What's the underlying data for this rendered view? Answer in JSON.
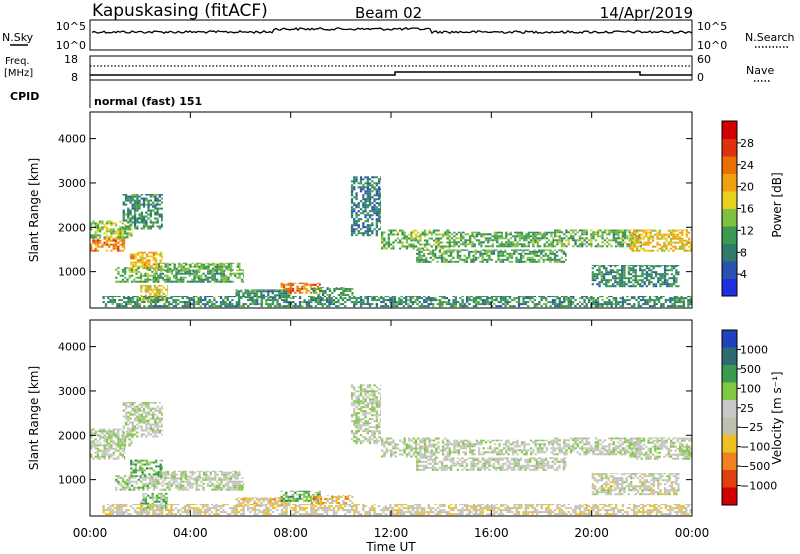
{
  "header": {
    "station": "Kapuskasing (fitACF)",
    "beam": "Beam 02",
    "date": "14/Apr/2019"
  },
  "meta_panels": {
    "nsky": {
      "label": "N.Sky",
      "ticks": [
        "10^5",
        "10^0"
      ]
    },
    "nsearch": {
      "label": "N.Search",
      "ticks": [
        "10^5",
        "10^0"
      ]
    },
    "freq": {
      "label_line1": "Freq.",
      "label_line2": "[MHz]",
      "ticks": [
        "18",
        "8"
      ]
    },
    "nave": {
      "label": "Nave",
      "ticks": [
        "60",
        "0"
      ]
    },
    "cpid": {
      "label": "CPID",
      "value": "normal (fast) 151"
    }
  },
  "colors": {
    "power_scale": [
      "#1f2fe0",
      "#2a50b0",
      "#2f7a6a",
      "#3a9a50",
      "#7fc040",
      "#e8d020",
      "#f0a010",
      "#e87000",
      "#e03010",
      "#d00000"
    ],
    "velocity_scale": [
      "#2040c0",
      "#2f6a70",
      "#3a9a50",
      "#80c840",
      "#c8c8c8",
      "#c0c0b0",
      "#f0c020",
      "#f08020",
      "#e04010",
      "#d00000"
    ]
  },
  "chart_data": [
    {
      "type": "heatmap",
      "title": "",
      "quantity": "Power",
      "xlabel": "",
      "ylabel": "Slant Range [km]",
      "xlim": [
        0,
        24
      ],
      "ylim": [
        180,
        4600
      ],
      "x_ticks": [
        "00:00",
        "04:00",
        "08:00",
        "12:00",
        "16:00",
        "20:00",
        "00:00"
      ],
      "y_ticks": [
        1000,
        2000,
        3000,
        4000
      ],
      "colorbar": {
        "label": "Power [dB]",
        "range": [
          0,
          32
        ],
        "ticks": [
          4,
          8,
          12,
          16,
          20,
          24,
          28
        ]
      },
      "regions": [
        {
          "t": [
            0.0,
            1.4
          ],
          "r": [
            1450,
            1750
          ],
          "level": 0.72
        },
        {
          "t": [
            0.0,
            1.7
          ],
          "r": [
            1750,
            2150
          ],
          "level": 0.45
        },
        {
          "t": [
            1.3,
            2.9
          ],
          "r": [
            1950,
            2750
          ],
          "level": 0.3
        },
        {
          "t": [
            1.6,
            2.9
          ],
          "r": [
            1050,
            1450
          ],
          "level": 0.62
        },
        {
          "t": [
            1.0,
            2.7
          ],
          "r": [
            750,
            1100
          ],
          "level": 0.4
        },
        {
          "t": [
            2.5,
            6.1
          ],
          "r": [
            750,
            1050
          ],
          "level": 0.35
        },
        {
          "t": [
            2.7,
            6.0
          ],
          "r": [
            1000,
            1200
          ],
          "level": 0.4
        },
        {
          "t": [
            2.0,
            3.1
          ],
          "r": [
            300,
            700
          ],
          "level": 0.55
        },
        {
          "t": [
            5.8,
            8.0
          ],
          "r": [
            400,
            600
          ],
          "level": 0.3
        },
        {
          "t": [
            7.6,
            9.2
          ],
          "r": [
            500,
            750
          ],
          "level": 0.75
        },
        {
          "t": [
            8.8,
            10.5
          ],
          "r": [
            450,
            650
          ],
          "level": 0.35
        },
        {
          "t": [
            0.5,
            24.0
          ],
          "r": [
            200,
            450
          ],
          "level": 0.3
        },
        {
          "t": [
            10.4,
            11.6
          ],
          "r": [
            1800,
            3150
          ],
          "level": 0.25
        },
        {
          "t": [
            11.6,
            14.3
          ],
          "r": [
            1500,
            1950
          ],
          "level": 0.42
        },
        {
          "t": [
            14.3,
            18.5
          ],
          "r": [
            1550,
            1900
          ],
          "level": 0.38
        },
        {
          "t": [
            13.0,
            19.0
          ],
          "r": [
            1200,
            1500
          ],
          "level": 0.35
        },
        {
          "t": [
            18.5,
            22.0
          ],
          "r": [
            1550,
            1950
          ],
          "level": 0.4
        },
        {
          "t": [
            21.5,
            24.0
          ],
          "r": [
            1450,
            1950
          ],
          "level": 0.58
        },
        {
          "t": [
            20.0,
            23.5
          ],
          "r": [
            650,
            1150
          ],
          "level": 0.3
        }
      ]
    },
    {
      "type": "heatmap",
      "title": "",
      "quantity": "Velocity",
      "xlabel": "Time UT",
      "ylabel": "Slant Range [km]",
      "xlim": [
        0,
        24
      ],
      "ylim": [
        180,
        4600
      ],
      "x_ticks": [
        "00:00",
        "04:00",
        "08:00",
        "12:00",
        "16:00",
        "20:00",
        "00:00"
      ],
      "y_ticks": [
        1000,
        2000,
        3000,
        4000
      ],
      "colorbar": {
        "label": "Velocity [m s⁻¹]",
        "ticks": [
          "1000",
          "500",
          "100",
          "25",
          "−25",
          "−100",
          "−500",
          "−1000"
        ]
      },
      "regions": [
        {
          "t": [
            0.0,
            1.4
          ],
          "r": [
            1450,
            1750
          ],
          "level": 0.45
        },
        {
          "t": [
            0.0,
            1.7
          ],
          "r": [
            1750,
            2150
          ],
          "level": 0.45
        },
        {
          "t": [
            1.3,
            2.9
          ],
          "r": [
            1950,
            2750
          ],
          "level": 0.45
        },
        {
          "t": [
            1.6,
            2.9
          ],
          "r": [
            1050,
            1450
          ],
          "level": 0.3
        },
        {
          "t": [
            1.0,
            2.7
          ],
          "r": [
            750,
            1100
          ],
          "level": 0.4
        },
        {
          "t": [
            2.5,
            6.1
          ],
          "r": [
            750,
            1050
          ],
          "level": 0.45
        },
        {
          "t": [
            2.7,
            6.0
          ],
          "r": [
            1000,
            1200
          ],
          "level": 0.45
        },
        {
          "t": [
            2.0,
            3.1
          ],
          "r": [
            300,
            700
          ],
          "level": 0.35
        },
        {
          "t": [
            5.8,
            8.0
          ],
          "r": [
            400,
            600
          ],
          "level": 0.6
        },
        {
          "t": [
            7.6,
            9.2
          ],
          "r": [
            500,
            750
          ],
          "level": 0.3
        },
        {
          "t": [
            8.8,
            10.5
          ],
          "r": [
            450,
            650
          ],
          "level": 0.62
        },
        {
          "t": [
            0.5,
            24.0
          ],
          "r": [
            200,
            450
          ],
          "level": 0.55
        },
        {
          "t": [
            10.4,
            11.6
          ],
          "r": [
            1800,
            3150
          ],
          "level": 0.45
        },
        {
          "t": [
            11.6,
            14.3
          ],
          "r": [
            1500,
            1950
          ],
          "level": 0.46
        },
        {
          "t": [
            14.3,
            18.5
          ],
          "r": [
            1550,
            1900
          ],
          "level": 0.46
        },
        {
          "t": [
            13.0,
            19.0
          ],
          "r": [
            1200,
            1500
          ],
          "level": 0.47
        },
        {
          "t": [
            18.5,
            22.0
          ],
          "r": [
            1550,
            1950
          ],
          "level": 0.46
        },
        {
          "t": [
            21.5,
            24.0
          ],
          "r": [
            1450,
            1950
          ],
          "level": 0.45
        },
        {
          "t": [
            20.0,
            23.5
          ],
          "r": [
            650,
            1150
          ],
          "level": 0.5
        }
      ]
    }
  ]
}
